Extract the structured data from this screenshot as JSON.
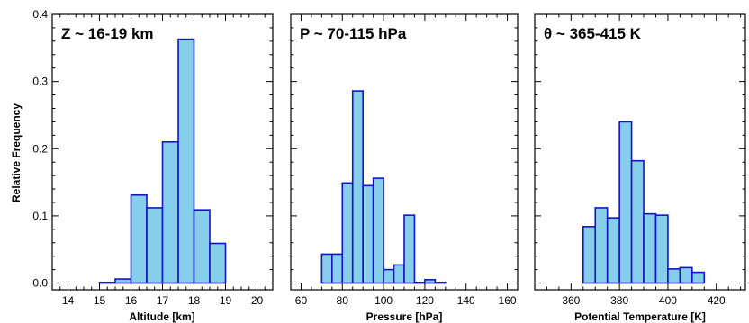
{
  "chart_data": [
    {
      "type": "bar",
      "title": "Z ~ 16-19 km",
      "xlabel": "Altitude [km]",
      "ylabel": "Relative Frequency",
      "xlim": [
        13.5,
        20.5
      ],
      "ylim": [
        -0.01,
        0.4
      ],
      "xticks": [
        14,
        15,
        16,
        17,
        18,
        19,
        20
      ],
      "xtick_labels": [
        "14",
        "15",
        "16",
        "17",
        "18",
        "19",
        "20"
      ],
      "yticks": [
        0.0,
        0.1,
        0.2,
        0.3,
        0.4
      ],
      "ytick_labels": [
        "0.0",
        "0.1",
        "0.2",
        "0.3",
        "0.4"
      ],
      "bin_width": 0.5,
      "bin_starts": [
        15.0,
        15.5,
        16.0,
        16.5,
        17.0,
        17.5,
        18.0,
        18.5
      ],
      "values": [
        0.001,
        0.006,
        0.131,
        0.112,
        0.21,
        0.363,
        0.109,
        0.059
      ],
      "grid": false
    },
    {
      "type": "bar",
      "title": "P ~ 70-115 hPa",
      "xlabel": "Pressure [hPa]",
      "ylabel": "",
      "xlim": [
        55,
        165
      ],
      "ylim": [
        -0.01,
        0.4
      ],
      "xticks": [
        60,
        80,
        100,
        120,
        140,
        160
      ],
      "xtick_labels": [
        "60",
        "80",
        "100",
        "120",
        "140",
        "160"
      ],
      "yticks": [
        0.0,
        0.1,
        0.2,
        0.3,
        0.4
      ],
      "bin_width": 5,
      "bin_starts": [
        70,
        75,
        80,
        85,
        90,
        95,
        100,
        105,
        110,
        115,
        120,
        125
      ],
      "values": [
        0.043,
        0.043,
        0.149,
        0.286,
        0.145,
        0.156,
        0.02,
        0.027,
        0.101,
        0.001,
        0.005,
        0.001
      ],
      "grid": false
    },
    {
      "type": "bar",
      "title": "θ ~ 365-415 K",
      "xlabel": "Potential Temperature [K]",
      "ylabel": "",
      "xlim": [
        345,
        432
      ],
      "ylim": [
        -0.01,
        0.4
      ],
      "xticks": [
        360,
        380,
        400,
        420
      ],
      "xtick_labels": [
        "360",
        "380",
        "400",
        "420"
      ],
      "yticks": [
        0.0,
        0.1,
        0.2,
        0.3,
        0.4
      ],
      "bin_width": 5,
      "bin_starts": [
        365,
        370,
        375,
        380,
        385,
        390,
        395,
        400,
        405,
        410
      ],
      "values": [
        0.084,
        0.112,
        0.097,
        0.24,
        0.182,
        0.103,
        0.101,
        0.021,
        0.023,
        0.016
      ],
      "grid": false
    }
  ]
}
